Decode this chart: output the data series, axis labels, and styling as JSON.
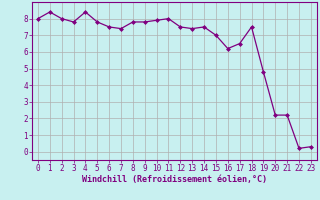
{
  "x": [
    0,
    1,
    2,
    3,
    4,
    5,
    6,
    7,
    8,
    9,
    10,
    11,
    12,
    13,
    14,
    15,
    16,
    17,
    18,
    19,
    20,
    21,
    22,
    23
  ],
  "y": [
    8.0,
    8.4,
    8.0,
    7.8,
    8.4,
    7.8,
    7.5,
    7.4,
    7.8,
    7.8,
    7.9,
    8.0,
    7.5,
    7.4,
    7.5,
    7.0,
    6.2,
    6.5,
    7.5,
    4.8,
    2.2,
    2.2,
    0.2,
    0.3
  ],
  "line_color": "#800080",
  "marker": "D",
  "markersize": 2.0,
  "linewidth": 0.9,
  "bg_color": "#c8f0f0",
  "grid_color": "#b0b0b0",
  "xlabel": "Windchill (Refroidissement éolien,°C)",
  "xlabel_color": "#800080",
  "xlabel_fontsize": 6.0,
  "tick_color": "#800080",
  "tick_fontsize": 5.5,
  "ylim": [
    -0.5,
    9.0
  ],
  "xlim": [
    -0.5,
    23.5
  ],
  "yticks": [
    0,
    1,
    2,
    3,
    4,
    5,
    6,
    7,
    8
  ],
  "xticks": [
    0,
    1,
    2,
    3,
    4,
    5,
    6,
    7,
    8,
    9,
    10,
    11,
    12,
    13,
    14,
    15,
    16,
    17,
    18,
    19,
    20,
    21,
    22,
    23
  ]
}
